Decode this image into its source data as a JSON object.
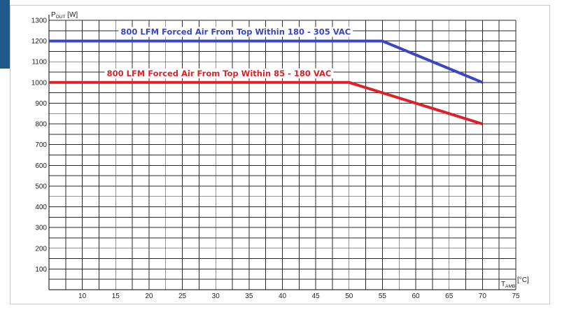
{
  "chart_data": {
    "type": "line",
    "y_axis": {
      "label_main": "P",
      "label_sub": "OUT",
      "label_unit": " [W]",
      "min": 0,
      "max": 1300
    },
    "x_axis": {
      "label_main": "T",
      "label_sub": "AMB",
      "label_unit": " [°C]",
      "min": 5,
      "max": 75
    },
    "y_ticks": [
      100,
      200,
      300,
      400,
      500,
      600,
      700,
      800,
      900,
      1000,
      1100,
      1200,
      1300
    ],
    "x_ticks": [
      10,
      15,
      20,
      25,
      30,
      35,
      40,
      45,
      50,
      55,
      60,
      65,
      70,
      75
    ],
    "grid": true,
    "series": [
      {
        "name": "800 LFM Forced Air From Top Within 180 - 305 VAC",
        "color": "#3a46c4",
        "points": [
          [
            5,
            1200
          ],
          [
            55,
            1200
          ],
          [
            70,
            1000
          ]
        ]
      },
      {
        "name": "800 LFM Forced Air From Top Within 85 - 180 VAC",
        "color": "#e02028",
        "points": [
          [
            5,
            1000
          ],
          [
            50,
            1000
          ],
          [
            70,
            800
          ]
        ]
      }
    ]
  }
}
